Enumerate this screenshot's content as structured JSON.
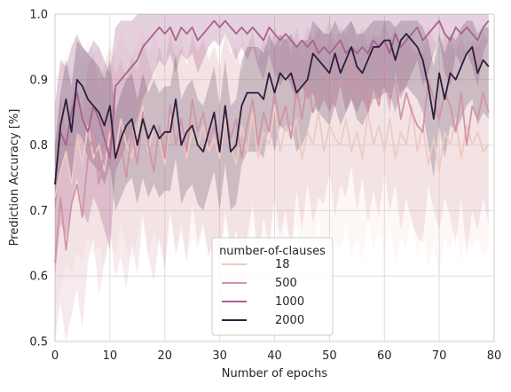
{
  "chart_data": {
    "type": "line",
    "xlabel": "Number of epochs",
    "ylabel": "Prediction Accuracy [%]",
    "xlim": [
      0,
      80
    ],
    "ylim": [
      0.5,
      1.0
    ],
    "x_ticks": [
      0,
      10,
      20,
      30,
      40,
      50,
      60,
      70,
      80
    ],
    "y_ticks": [
      0.5,
      0.6,
      0.7,
      0.8,
      0.9,
      1.0
    ],
    "x_tick_labels": [
      "0",
      "10",
      "20",
      "30",
      "40",
      "50",
      "60",
      "70",
      "80"
    ],
    "y_tick_labels": [
      "0.5",
      "0.6",
      "0.7",
      "0.8",
      "0.9",
      "1.0"
    ],
    "grid": true,
    "legend": {
      "title": "number-of-clauses",
      "placement": "bottom-center"
    },
    "x": [
      0,
      1,
      2,
      3,
      4,
      5,
      6,
      7,
      8,
      9,
      10,
      11,
      12,
      13,
      14,
      15,
      16,
      17,
      18,
      19,
      20,
      21,
      22,
      23,
      24,
      25,
      26,
      27,
      28,
      29,
      30,
      31,
      32,
      33,
      34,
      35,
      36,
      37,
      38,
      39,
      40,
      41,
      42,
      43,
      44,
      45,
      46,
      47,
      48,
      49,
      50,
      51,
      52,
      53,
      54,
      55,
      56,
      57,
      58,
      59,
      60,
      61,
      62,
      63,
      64,
      65,
      66,
      67,
      68,
      69,
      70,
      71,
      72,
      73,
      74,
      75,
      76,
      77,
      78,
      79
    ],
    "series": [
      {
        "name": "18",
        "color": "#efc9c2",
        "band_opacity": 0.15,
        "values": [
          0.72,
          0.76,
          0.79,
          0.74,
          0.81,
          0.77,
          0.83,
          0.78,
          0.8,
          0.76,
          0.82,
          0.79,
          0.84,
          0.8,
          0.78,
          0.82,
          0.86,
          0.79,
          0.83,
          0.81,
          0.77,
          0.85,
          0.8,
          0.84,
          0.78,
          0.82,
          0.8,
          0.83,
          0.79,
          0.81,
          0.78,
          0.84,
          0.8,
          0.77,
          0.83,
          0.79,
          0.85,
          0.78,
          0.82,
          0.8,
          0.86,
          0.79,
          0.83,
          0.81,
          0.84,
          0.78,
          0.82,
          0.8,
          0.85,
          0.79,
          0.83,
          0.81,
          0.8,
          0.84,
          0.79,
          0.82,
          0.78,
          0.85,
          0.8,
          0.83,
          0.79,
          0.84,
          0.78,
          0.82,
          0.8,
          0.86,
          0.79,
          0.83,
          0.77,
          0.81,
          0.76,
          0.82,
          0.8,
          0.84,
          0.78,
          0.83,
          0.8,
          0.82,
          0.79,
          0.8
        ],
        "lower": [
          0.55,
          0.58,
          0.62,
          0.6,
          0.64,
          0.62,
          0.66,
          0.63,
          0.65,
          0.61,
          0.66,
          0.63,
          0.68,
          0.64,
          0.62,
          0.66,
          0.7,
          0.63,
          0.67,
          0.65,
          0.61,
          0.69,
          0.64,
          0.68,
          0.62,
          0.66,
          0.64,
          0.67,
          0.63,
          0.65,
          0.62,
          0.68,
          0.64,
          0.61,
          0.67,
          0.63,
          0.69,
          0.62,
          0.66,
          0.64,
          0.7,
          0.63,
          0.67,
          0.65,
          0.68,
          0.62,
          0.66,
          0.64,
          0.69,
          0.63,
          0.67,
          0.65,
          0.64,
          0.68,
          0.63,
          0.66,
          0.62,
          0.69,
          0.64,
          0.67,
          0.63,
          0.68,
          0.62,
          0.66,
          0.64,
          0.7,
          0.63,
          0.67,
          0.61,
          0.65,
          0.6,
          0.66,
          0.64,
          0.68,
          0.62,
          0.67,
          0.64,
          0.66,
          0.63,
          0.64
        ],
        "upper": [
          0.9,
          0.92,
          0.94,
          0.91,
          0.95,
          0.93,
          0.96,
          0.94,
          0.95,
          0.92,
          0.96,
          0.94,
          0.97,
          0.95,
          0.93,
          0.96,
          0.98,
          0.94,
          0.97,
          0.95,
          0.92,
          0.98,
          0.95,
          0.97,
          0.93,
          0.96,
          0.95,
          0.97,
          0.94,
          0.96,
          0.93,
          0.97,
          0.95,
          0.92,
          0.97,
          0.94,
          0.98,
          0.93,
          0.96,
          0.95,
          0.98,
          0.94,
          0.97,
          0.95,
          0.97,
          0.93,
          0.96,
          0.95,
          0.98,
          0.94,
          0.97,
          0.95,
          0.95,
          0.97,
          0.94,
          0.96,
          0.93,
          0.98,
          0.95,
          0.97,
          0.94,
          0.97,
          0.93,
          0.96,
          0.95,
          0.98,
          0.94,
          0.97,
          0.92,
          0.95,
          0.91,
          0.96,
          0.95,
          0.97,
          0.93,
          0.97,
          0.95,
          0.96,
          0.94,
          0.95
        ]
      },
      {
        "name": "500",
        "color": "#d095a6",
        "band_opacity": 0.2,
        "values": [
          0.62,
          0.72,
          0.64,
          0.71,
          0.74,
          0.69,
          0.78,
          0.82,
          0.74,
          0.79,
          0.83,
          0.77,
          0.8,
          0.75,
          0.82,
          0.77,
          0.85,
          0.8,
          0.76,
          0.83,
          0.78,
          0.86,
          0.8,
          0.84,
          0.79,
          0.87,
          0.82,
          0.85,
          0.8,
          0.83,
          0.79,
          0.86,
          0.81,
          0.84,
          0.78,
          0.83,
          0.87,
          0.8,
          0.85,
          0.82,
          0.88,
          0.83,
          0.86,
          0.81,
          0.89,
          0.84,
          0.9,
          0.85,
          0.88,
          0.87,
          0.92,
          0.86,
          0.9,
          0.88,
          0.93,
          0.87,
          0.91,
          0.85,
          0.89,
          0.86,
          0.92,
          0.87,
          0.9,
          0.84,
          0.88,
          0.85,
          0.83,
          0.82,
          0.9,
          0.87,
          0.84,
          0.88,
          0.86,
          0.82,
          0.88,
          0.8,
          0.86,
          0.84,
          0.88,
          0.85
        ],
        "lower": [
          0.5,
          0.56,
          0.5,
          0.54,
          0.58,
          0.52,
          0.62,
          0.66,
          0.57,
          0.62,
          0.67,
          0.6,
          0.63,
          0.58,
          0.65,
          0.6,
          0.69,
          0.63,
          0.59,
          0.66,
          0.61,
          0.7,
          0.63,
          0.67,
          0.62,
          0.71,
          0.65,
          0.68,
          0.63,
          0.66,
          0.62,
          0.7,
          0.64,
          0.67,
          0.61,
          0.66,
          0.71,
          0.63,
          0.69,
          0.65,
          0.72,
          0.66,
          0.7,
          0.64,
          0.73,
          0.67,
          0.74,
          0.68,
          0.72,
          0.71,
          0.76,
          0.69,
          0.74,
          0.72,
          0.77,
          0.7,
          0.75,
          0.68,
          0.73,
          0.69,
          0.76,
          0.7,
          0.74,
          0.67,
          0.72,
          0.68,
          0.66,
          0.65,
          0.74,
          0.7,
          0.67,
          0.72,
          0.69,
          0.65,
          0.72,
          0.63,
          0.7,
          0.67,
          0.72,
          0.68
        ],
        "upper": [
          0.8,
          0.88,
          0.82,
          0.87,
          0.89,
          0.85,
          0.92,
          0.94,
          0.89,
          0.92,
          0.95,
          0.91,
          0.93,
          0.9,
          0.94,
          0.91,
          0.96,
          0.93,
          0.9,
          0.95,
          0.92,
          0.97,
          0.93,
          0.95,
          0.92,
          0.97,
          0.94,
          0.96,
          0.93,
          0.95,
          0.92,
          0.97,
          0.94,
          0.95,
          0.91,
          0.95,
          0.97,
          0.93,
          0.96,
          0.94,
          0.98,
          0.95,
          0.97,
          0.94,
          0.98,
          0.95,
          0.98,
          0.96,
          0.98,
          0.97,
          0.99,
          0.96,
          0.98,
          0.97,
          0.99,
          0.96,
          0.98,
          0.95,
          0.97,
          0.96,
          0.99,
          0.96,
          0.98,
          0.95,
          0.97,
          0.95,
          0.94,
          0.94,
          0.98,
          0.96,
          0.95,
          0.97,
          0.96,
          0.94,
          0.97,
          0.93,
          0.96,
          0.95,
          0.97,
          0.96
        ]
      },
      {
        "name": "1000",
        "color": "#a8628e",
        "band_opacity": 0.3,
        "values": [
          0.74,
          0.82,
          0.8,
          0.85,
          0.88,
          0.84,
          0.82,
          0.86,
          0.84,
          0.81,
          0.78,
          0.89,
          0.9,
          0.91,
          0.92,
          0.93,
          0.95,
          0.96,
          0.97,
          0.98,
          0.97,
          0.98,
          0.96,
          0.98,
          0.97,
          0.98,
          0.96,
          0.97,
          0.98,
          0.99,
          0.98,
          0.99,
          0.98,
          0.97,
          0.98,
          0.97,
          0.98,
          0.97,
          0.96,
          0.98,
          0.97,
          0.96,
          0.97,
          0.96,
          0.95,
          0.96,
          0.95,
          0.96,
          0.94,
          0.95,
          0.94,
          0.95,
          0.96,
          0.94,
          0.95,
          0.94,
          0.95,
          0.94,
          0.96,
          0.95,
          0.96,
          0.94,
          0.97,
          0.95,
          0.96,
          0.97,
          0.98,
          0.96,
          0.97,
          0.98,
          0.99,
          0.97,
          0.96,
          0.98,
          0.97,
          0.98,
          0.97,
          0.96,
          0.98,
          0.99
        ],
        "lower": [
          0.6,
          0.68,
          0.66,
          0.71,
          0.75,
          0.7,
          0.68,
          0.72,
          0.7,
          0.67,
          0.64,
          0.76,
          0.78,
          0.8,
          0.82,
          0.84,
          0.87,
          0.89,
          0.91,
          0.93,
          0.92,
          0.94,
          0.91,
          0.94,
          0.93,
          0.94,
          0.91,
          0.93,
          0.95,
          0.96,
          0.95,
          0.97,
          0.95,
          0.93,
          0.95,
          0.93,
          0.95,
          0.92,
          0.9,
          0.94,
          0.91,
          0.89,
          0.91,
          0.89,
          0.87,
          0.89,
          0.87,
          0.88,
          0.85,
          0.87,
          0.85,
          0.87,
          0.89,
          0.85,
          0.87,
          0.85,
          0.87,
          0.85,
          0.89,
          0.87,
          0.89,
          0.85,
          0.91,
          0.87,
          0.89,
          0.91,
          0.93,
          0.89,
          0.91,
          0.94,
          0.96,
          0.91,
          0.89,
          0.94,
          0.92,
          0.94,
          0.92,
          0.89,
          0.94,
          0.96
        ],
        "upper": [
          0.86,
          0.93,
          0.92,
          0.95,
          0.97,
          0.95,
          0.94,
          0.96,
          0.95,
          0.93,
          0.91,
          0.98,
          0.99,
          0.99,
          0.99,
          1.0,
          1.0,
          1.0,
          1.0,
          1.0,
          1.0,
          1.0,
          1.0,
          1.0,
          1.0,
          1.0,
          1.0,
          1.0,
          1.0,
          1.0,
          1.0,
          1.0,
          1.0,
          1.0,
          1.0,
          1.0,
          1.0,
          1.0,
          1.0,
          1.0,
          1.0,
          1.0,
          1.0,
          1.0,
          1.0,
          1.0,
          1.0,
          1.0,
          1.0,
          1.0,
          1.0,
          1.0,
          1.0,
          1.0,
          1.0,
          1.0,
          1.0,
          1.0,
          1.0,
          1.0,
          1.0,
          1.0,
          1.0,
          1.0,
          1.0,
          1.0,
          1.0,
          1.0,
          1.0,
          1.0,
          1.0,
          1.0,
          1.0,
          1.0,
          1.0,
          1.0,
          1.0,
          1.0,
          1.0,
          1.0
        ]
      },
      {
        "name": "2000",
        "color": "#2d1e3e",
        "band_opacity": 0.2,
        "values": [
          0.74,
          0.83,
          0.87,
          0.82,
          0.9,
          0.89,
          0.87,
          0.86,
          0.85,
          0.83,
          0.86,
          0.78,
          0.81,
          0.83,
          0.84,
          0.8,
          0.84,
          0.81,
          0.83,
          0.81,
          0.82,
          0.82,
          0.87,
          0.8,
          0.82,
          0.83,
          0.8,
          0.79,
          0.82,
          0.85,
          0.79,
          0.86,
          0.79,
          0.8,
          0.86,
          0.88,
          0.88,
          0.88,
          0.87,
          0.91,
          0.88,
          0.91,
          0.9,
          0.91,
          0.88,
          0.89,
          0.9,
          0.94,
          0.93,
          0.92,
          0.91,
          0.94,
          0.91,
          0.93,
          0.95,
          0.92,
          0.91,
          0.93,
          0.95,
          0.95,
          0.96,
          0.96,
          0.93,
          0.96,
          0.97,
          0.96,
          0.95,
          0.93,
          0.89,
          0.84,
          0.91,
          0.87,
          0.91,
          0.9,
          0.92,
          0.94,
          0.95,
          0.91,
          0.93,
          0.92
        ],
        "lower": [
          0.7,
          0.76,
          0.79,
          0.74,
          0.82,
          0.81,
          0.78,
          0.77,
          0.76,
          0.74,
          0.77,
          0.7,
          0.72,
          0.74,
          0.75,
          0.71,
          0.75,
          0.72,
          0.74,
          0.72,
          0.73,
          0.73,
          0.78,
          0.71,
          0.73,
          0.74,
          0.71,
          0.7,
          0.73,
          0.76,
          0.7,
          0.77,
          0.7,
          0.71,
          0.77,
          0.79,
          0.79,
          0.79,
          0.78,
          0.83,
          0.79,
          0.83,
          0.82,
          0.83,
          0.79,
          0.8,
          0.82,
          0.86,
          0.85,
          0.84,
          0.83,
          0.86,
          0.83,
          0.85,
          0.87,
          0.84,
          0.83,
          0.85,
          0.87,
          0.87,
          0.88,
          0.88,
          0.85,
          0.88,
          0.89,
          0.88,
          0.87,
          0.85,
          0.8,
          0.75,
          0.83,
          0.78,
          0.83,
          0.82,
          0.84,
          0.86,
          0.87,
          0.83,
          0.85,
          0.84
        ],
        "upper": [
          0.8,
          0.88,
          0.93,
          0.89,
          0.96,
          0.95,
          0.94,
          0.93,
          0.92,
          0.9,
          0.93,
          0.85,
          0.88,
          0.9,
          0.91,
          0.87,
          0.91,
          0.88,
          0.9,
          0.88,
          0.89,
          0.89,
          0.94,
          0.87,
          0.89,
          0.9,
          0.87,
          0.86,
          0.89,
          0.92,
          0.86,
          0.93,
          0.86,
          0.87,
          0.93,
          0.95,
          0.95,
          0.95,
          0.94,
          0.97,
          0.95,
          0.97,
          0.96,
          0.97,
          0.95,
          0.96,
          0.96,
          0.99,
          0.98,
          0.97,
          0.97,
          0.99,
          0.97,
          0.98,
          0.99,
          0.97,
          0.97,
          0.98,
          0.99,
          0.99,
          0.99,
          0.99,
          0.98,
          0.99,
          0.99,
          0.99,
          0.99,
          0.98,
          0.96,
          0.92,
          0.97,
          0.94,
          0.97,
          0.96,
          0.98,
          0.99,
          0.99,
          0.97,
          0.98,
          0.98
        ]
      }
    ]
  }
}
